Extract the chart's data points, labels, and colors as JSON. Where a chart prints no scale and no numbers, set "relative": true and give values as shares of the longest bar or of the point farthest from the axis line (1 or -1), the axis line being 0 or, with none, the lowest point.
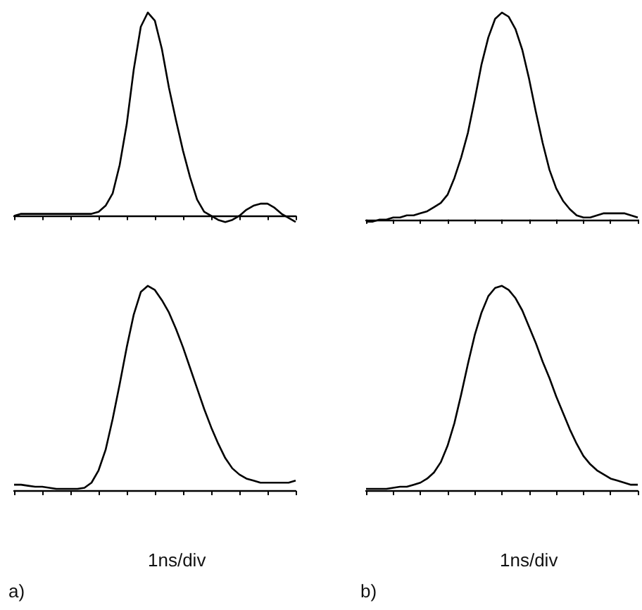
{
  "chart_data": [
    {
      "type": "line",
      "relative": true,
      "marker": "none",
      "categories": [
        null,
        null,
        null,
        null,
        null,
        null,
        null,
        null,
        null,
        null,
        null,
        null,
        null,
        null,
        null,
        null,
        null,
        null,
        null,
        null,
        null,
        null,
        null,
        null,
        null,
        null,
        null,
        null,
        null,
        null,
        null,
        null,
        null,
        null,
        null,
        null,
        null,
        null,
        null,
        null,
        null
      ],
      "series": [
        {
          "color": "#000000",
          "values": [
            0,
            0.01,
            0.01,
            0.01,
            0.01,
            0.01,
            0.01,
            0.01,
            0.01,
            0.01,
            0.01,
            0.01,
            0.02,
            0.05,
            0.11,
            0.25,
            0.45,
            0.72,
            0.93,
            1.0,
            0.96,
            0.82,
            0.63,
            0.47,
            0.32,
            0.19,
            0.08,
            0.02,
            0,
            -0.02,
            -0.03,
            -0.02,
            0,
            0.03,
            0.05,
            0.06,
            0.06,
            0.04,
            0.01,
            -0.01,
            -0.03
          ]
        }
      ]
    },
    {
      "type": "line",
      "relative": true,
      "marker": "none",
      "categories": [
        null,
        null,
        null,
        null,
        null,
        null,
        null,
        null,
        null,
        null,
        null,
        null,
        null,
        null,
        null,
        null,
        null,
        null,
        null,
        null,
        null,
        null,
        null,
        null,
        null,
        null,
        null,
        null,
        null,
        null,
        null,
        null,
        null,
        null,
        null,
        null,
        null,
        null,
        null,
        null,
        null
      ],
      "series": [
        {
          "color": "#000000",
          "values": [
            -0.01,
            -0.01,
            0,
            0,
            0.01,
            0.01,
            0.02,
            0.02,
            0.03,
            0.04,
            0.06,
            0.08,
            0.12,
            0.2,
            0.3,
            0.42,
            0.58,
            0.75,
            0.88,
            0.97,
            1.0,
            0.98,
            0.92,
            0.82,
            0.68,
            0.52,
            0.37,
            0.24,
            0.15,
            0.09,
            0.05,
            0.02,
            0.01,
            0.01,
            0.02,
            0.03,
            0.03,
            0.03,
            0.03,
            0.02,
            0.01
          ]
        }
      ]
    },
    {
      "type": "line",
      "relative": true,
      "marker": "none",
      "annotations": [
        "1ns/div",
        "a)"
      ],
      "categories": [
        null,
        null,
        null,
        null,
        null,
        null,
        null,
        null,
        null,
        null,
        null,
        null,
        null,
        null,
        null,
        null,
        null,
        null,
        null,
        null,
        null,
        null,
        null,
        null,
        null,
        null,
        null,
        null,
        null,
        null,
        null,
        null,
        null,
        null,
        null,
        null,
        null,
        null,
        null,
        null,
        null
      ],
      "series": [
        {
          "color": "#000000",
          "values": [
            0.03,
            0.03,
            0.025,
            0.02,
            0.02,
            0.015,
            0.01,
            0.01,
            0.01,
            0.01,
            0.015,
            0.04,
            0.1,
            0.2,
            0.35,
            0.52,
            0.7,
            0.86,
            0.97,
            1.0,
            0.98,
            0.93,
            0.87,
            0.79,
            0.7,
            0.6,
            0.5,
            0.4,
            0.31,
            0.23,
            0.16,
            0.11,
            0.08,
            0.06,
            0.05,
            0.04,
            0.04,
            0.04,
            0.04,
            0.04,
            0.05
          ]
        }
      ]
    },
    {
      "type": "line",
      "relative": true,
      "marker": "none",
      "annotations": [
        "1ns/div",
        "b)"
      ],
      "categories": [
        null,
        null,
        null,
        null,
        null,
        null,
        null,
        null,
        null,
        null,
        null,
        null,
        null,
        null,
        null,
        null,
        null,
        null,
        null,
        null,
        null,
        null,
        null,
        null,
        null,
        null,
        null,
        null,
        null,
        null,
        null,
        null,
        null,
        null,
        null,
        null,
        null,
        null,
        null,
        null,
        null
      ],
      "series": [
        {
          "color": "#000000",
          "values": [
            0.01,
            0.01,
            0.01,
            0.01,
            0.015,
            0.02,
            0.02,
            0.03,
            0.04,
            0.06,
            0.09,
            0.14,
            0.22,
            0.33,
            0.47,
            0.62,
            0.76,
            0.87,
            0.95,
            0.99,
            1.0,
            0.98,
            0.94,
            0.88,
            0.8,
            0.72,
            0.63,
            0.55,
            0.46,
            0.38,
            0.3,
            0.23,
            0.17,
            0.13,
            0.1,
            0.08,
            0.06,
            0.05,
            0.04,
            0.03,
            0.03
          ]
        }
      ]
    }
  ]
}
